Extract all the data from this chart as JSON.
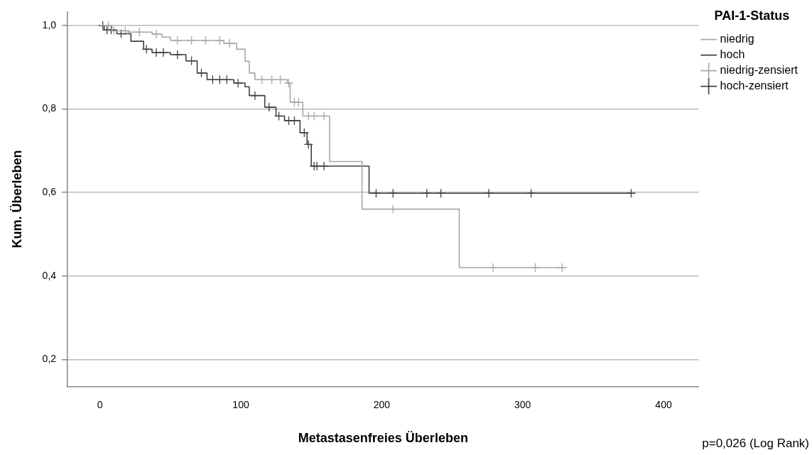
{
  "chart_data": {
    "type": "step",
    "xlabel": "Metastasenfreies Überleben",
    "ylabel": "Kum. Überleben",
    "legend_title": "PAI-1-Status",
    "legend": "top right",
    "grid": "y",
    "xlim": [
      -23,
      425
    ],
    "ylim": [
      0.135,
      1.033
    ],
    "xticks": [
      0,
      100,
      200,
      300,
      400
    ],
    "yticks": [
      {
        "value": 0.2,
        "label": "0,2"
      },
      {
        "value": 0.4,
        "label": "0,4"
      },
      {
        "value": 0.6,
        "label": "0,6"
      },
      {
        "value": 0.8,
        "label": "0,8"
      },
      {
        "value": 1,
        "label": "1,0"
      }
    ],
    "annotations": [
      "p=0,026 (Log Rank)"
    ],
    "series": [
      {
        "name": "niedrig",
        "color": "#a8a8a8",
        "x": [
          0,
          8.5,
          20,
          37,
          44,
          50,
          88,
          97,
          103,
          106,
          110,
          133,
          135,
          144,
          163,
          186,
          255,
          331
        ],
        "values": [
          1,
          0.987,
          0.984,
          0.979,
          0.972,
          0.964,
          0.957,
          0.943,
          0.914,
          0.886,
          0.87,
          0.862,
          0.816,
          0.783,
          0.674,
          0.56,
          0.42,
          0.42
        ]
      },
      {
        "name": "hoch",
        "color": "#404040",
        "x": [
          0,
          3,
          12,
          22,
          31,
          37,
          50,
          61,
          69,
          76,
          95,
          103,
          106,
          117,
          125,
          131,
          142,
          147,
          150,
          191,
          377
        ],
        "values": [
          1,
          0.989,
          0.98,
          0.962,
          0.943,
          0.935,
          0.93,
          0.915,
          0.886,
          0.87,
          0.862,
          0.853,
          0.832,
          0.804,
          0.783,
          0.772,
          0.743,
          0.715,
          0.663,
          0.598,
          0.598
        ]
      },
      {
        "name": "niedrig-zensiert",
        "type": "scatter",
        "marker": "cross",
        "color": "#a8a8a8",
        "x": [
          6,
          10,
          18,
          28,
          40,
          55,
          65,
          75,
          85,
          92,
          115,
          122,
          128,
          134,
          138,
          141,
          148,
          152,
          159,
          208,
          279,
          309,
          328
        ],
        "values": [
          1,
          0.987,
          0.987,
          0.984,
          0.979,
          0.964,
          0.964,
          0.964,
          0.964,
          0.957,
          0.87,
          0.87,
          0.87,
          0.862,
          0.816,
          0.816,
          0.783,
          0.783,
          0.783,
          0.56,
          0.42,
          0.42,
          0.42
        ]
      },
      {
        "name": "hoch-zensiert",
        "type": "scatter",
        "marker": "cross",
        "color": "#404040",
        "x": [
          2,
          5,
          8,
          15,
          33,
          40,
          45,
          55,
          65,
          72,
          80,
          85,
          90,
          98,
          110,
          120,
          127,
          134,
          138,
          145,
          148,
          152,
          154,
          159,
          196,
          208,
          232,
          242,
          276,
          306,
          377
        ],
        "values": [
          1,
          0.989,
          0.989,
          0.98,
          0.943,
          0.935,
          0.935,
          0.93,
          0.915,
          0.886,
          0.87,
          0.87,
          0.87,
          0.862,
          0.832,
          0.804,
          0.783,
          0.772,
          0.772,
          0.743,
          0.715,
          0.663,
          0.663,
          0.663,
          0.598,
          0.598,
          0.598,
          0.598,
          0.598,
          0.598,
          0.598
        ]
      }
    ]
  }
}
